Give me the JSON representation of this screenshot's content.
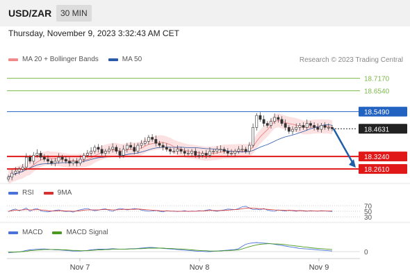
{
  "header": {
    "pair": "USD/ZAR",
    "timeframe": "30 MIN"
  },
  "datetime": "Thursday, November 9, 2023 3:32:43 AM CET",
  "copyright": "Research © 2023 Trading Central",
  "price_legend": [
    {
      "label": "MA 20 + Bollinger Bands",
      "color": "#f08a8a"
    },
    {
      "label": "MA 50",
      "color": "#2a5aa8"
    }
  ],
  "rsi_legend": [
    {
      "label": "RSI",
      "color": "#4a72d8"
    },
    {
      "label": "9MA",
      "color": "#d83030"
    }
  ],
  "macd_legend": [
    {
      "label": "MACD",
      "color": "#4a72d8"
    },
    {
      "label": "MACD Signal",
      "color": "#4a9a20"
    }
  ],
  "x_ticks": [
    "Nov 7",
    "Nov 8",
    "Nov 9"
  ],
  "chart_data": {
    "type": "candlestick",
    "y_range": [
      18.195,
      18.775
    ],
    "levels": [
      {
        "value": 18.717,
        "label": "18.7170",
        "color": "#7db84a",
        "kind": "resistance"
      },
      {
        "value": 18.654,
        "label": "18.6540",
        "color": "#7db84a",
        "kind": "resistance"
      },
      {
        "value": 18.549,
        "label": "18.5490",
        "color": "#2262c0",
        "kind": "pivot"
      },
      {
        "value": 18.4631,
        "label": "18.4631",
        "color": "#222222",
        "kind": "last"
      },
      {
        "value": 18.324,
        "label": "18.3240",
        "color": "#e01818",
        "kind": "support"
      },
      {
        "value": 18.261,
        "label": "18.2610",
        "color": "#e01818",
        "kind": "support"
      }
    ],
    "close": [
      18.22,
      18.24,
      18.25,
      18.26,
      18.27,
      18.32,
      18.3,
      18.33,
      18.34,
      18.32,
      18.31,
      18.3,
      18.29,
      18.3,
      18.32,
      18.31,
      18.3,
      18.29,
      18.3,
      18.29,
      18.31,
      18.33,
      18.34,
      18.35,
      18.37,
      18.36,
      18.34,
      18.35,
      18.36,
      18.37,
      18.35,
      18.33,
      18.36,
      18.38,
      18.37,
      18.35,
      18.38,
      18.39,
      18.4,
      18.42,
      18.41,
      18.39,
      18.38,
      18.37,
      18.36,
      18.35,
      18.35,
      18.36,
      18.35,
      18.34,
      18.34,
      18.35,
      18.33,
      18.33,
      18.34,
      18.33,
      18.35,
      18.35,
      18.36,
      18.36,
      18.35,
      18.34,
      18.34,
      18.35,
      18.36,
      18.36,
      18.35,
      18.38,
      18.47,
      18.53,
      18.51,
      18.49,
      18.48,
      18.5,
      18.52,
      18.51,
      18.49,
      18.47,
      18.45,
      18.46,
      18.47,
      18.48,
      18.47,
      18.49,
      18.48,
      18.47,
      18.46,
      18.48,
      18.47,
      18.47,
      18.4631
    ],
    "rsi_levels": [
      70,
      50,
      30
    ],
    "rsi": [
      48,
      55,
      58,
      52,
      56,
      62,
      50,
      57,
      60,
      52,
      49,
      48,
      50,
      53,
      55,
      51,
      49,
      50,
      47,
      52,
      56,
      58,
      60,
      55,
      52,
      54,
      57,
      59,
      53,
      50,
      56,
      60,
      58,
      55,
      57,
      60,
      58,
      54,
      52,
      50,
      51,
      53,
      50,
      48,
      52,
      50,
      51,
      49,
      50,
      52,
      49,
      51,
      50,
      52,
      51,
      54,
      56,
      52,
      50,
      53,
      55,
      58,
      57,
      56,
      60,
      66,
      68,
      62,
      56,
      58,
      55,
      60,
      54,
      52,
      50,
      55,
      53,
      51,
      54,
      52,
      50,
      53,
      51,
      50,
      52,
      51,
      50,
      52,
      51,
      50,
      49
    ],
    "rsi_ma": [
      50,
      52,
      54,
      54,
      55,
      56,
      55,
      55,
      56,
      55,
      54,
      52,
      51,
      51,
      52,
      52,
      51,
      51,
      50,
      51,
      52,
      54,
      55,
      55,
      55,
      55,
      56,
      56,
      56,
      55,
      55,
      56,
      57,
      57,
      57,
      57,
      58,
      57,
      56,
      55,
      54,
      53,
      52,
      51,
      51,
      51,
      50,
      50,
      50,
      50,
      50,
      50,
      50,
      51,
      51,
      52,
      53,
      53,
      52,
      53,
      53,
      54,
      55,
      56,
      57,
      59,
      61,
      62,
      61,
      60,
      59,
      58,
      57,
      56,
      55,
      54,
      54,
      53,
      53,
      53,
      52,
      52,
      52,
      51,
      51,
      51,
      51,
      51,
      51,
      51,
      51
    ],
    "macd_zero": 0,
    "macd": [
      -0.004,
      -0.003,
      -0.002,
      -0.001,
      0.001,
      0.004,
      0.006,
      0.007,
      0.008,
      0.009,
      0.009,
      0.008,
      0.007,
      0.006,
      0.006,
      0.005,
      0.004,
      0.003,
      0.002,
      0.002,
      0.002,
      0.003,
      0.004,
      0.006,
      0.007,
      0.008,
      0.008,
      0.008,
      0.009,
      0.01,
      0.009,
      0.008,
      0.008,
      0.009,
      0.01,
      0.01,
      0.011,
      0.012,
      0.013,
      0.014,
      0.014,
      0.013,
      0.012,
      0.011,
      0.01,
      0.009,
      0.008,
      0.007,
      0.006,
      0.005,
      0.004,
      0.003,
      0.002,
      0.001,
      0.001,
      0.0,
      0.0,
      0.001,
      0.002,
      0.003,
      0.004,
      0.005,
      0.006,
      0.007,
      0.01,
      0.018,
      0.025,
      0.028,
      0.03,
      0.031,
      0.03,
      0.029,
      0.028,
      0.027,
      0.025,
      0.023,
      0.021,
      0.019,
      0.017,
      0.015,
      0.013,
      0.011,
      0.01,
      0.009,
      0.008,
      0.007,
      0.006,
      0.005,
      0.004,
      0.003,
      0.002
    ],
    "macd_signal": [
      -0.002,
      -0.002,
      -0.002,
      -0.001,
      0.0,
      0.001,
      0.003,
      0.004,
      0.005,
      0.006,
      0.007,
      0.007,
      0.007,
      0.007,
      0.007,
      0.006,
      0.006,
      0.005,
      0.004,
      0.004,
      0.003,
      0.003,
      0.003,
      0.004,
      0.005,
      0.006,
      0.006,
      0.007,
      0.007,
      0.008,
      0.008,
      0.008,
      0.008,
      0.008,
      0.009,
      0.009,
      0.01,
      0.01,
      0.011,
      0.012,
      0.012,
      0.012,
      0.012,
      0.012,
      0.011,
      0.011,
      0.01,
      0.009,
      0.009,
      0.008,
      0.007,
      0.006,
      0.005,
      0.004,
      0.003,
      0.003,
      0.002,
      0.002,
      0.002,
      0.002,
      0.003,
      0.003,
      0.004,
      0.005,
      0.006,
      0.009,
      0.013,
      0.017,
      0.02,
      0.023,
      0.025,
      0.026,
      0.027,
      0.027,
      0.026,
      0.026,
      0.025,
      0.024,
      0.022,
      0.021,
      0.019,
      0.018,
      0.016,
      0.015,
      0.013,
      0.012,
      0.011,
      0.01,
      0.009,
      0.008,
      0.007
    ]
  }
}
